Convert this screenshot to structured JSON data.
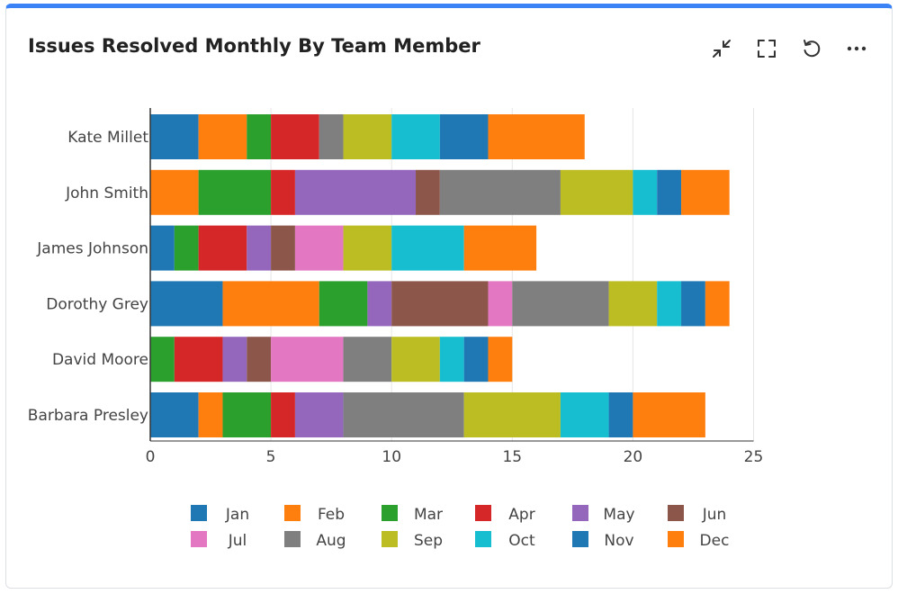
{
  "widget": {
    "title": "Issues Resolved Monthly By Team Member",
    "accent_color": "#3b82f6",
    "toolbar": [
      {
        "icon": "collapse-icon"
      },
      {
        "icon": "fullscreen-icon"
      },
      {
        "icon": "refresh-icon"
      },
      {
        "icon": "more-icon"
      }
    ]
  },
  "chart_data": {
    "type": "bar",
    "orientation": "horizontal",
    "stacked": true,
    "categories": [
      "Kate Millet",
      "John Smith",
      "James Johnson",
      "Dorothy Grey",
      "David Moore",
      "Barbara Presley"
    ],
    "series": [
      {
        "name": "Jan",
        "color": "#1f77b4",
        "values": [
          2,
          0,
          1,
          3,
          0,
          2
        ]
      },
      {
        "name": "Feb",
        "color": "#ff7f0e",
        "values": [
          2,
          2,
          0,
          4,
          0,
          1
        ]
      },
      {
        "name": "Mar",
        "color": "#2ca02c",
        "values": [
          1,
          3,
          1,
          2,
          1,
          2
        ]
      },
      {
        "name": "Apr",
        "color": "#d62728",
        "values": [
          2,
          1,
          2,
          0,
          2,
          1
        ]
      },
      {
        "name": "May",
        "color": "#9467bd",
        "values": [
          0,
          5,
          1,
          1,
          1,
          2
        ]
      },
      {
        "name": "Jun",
        "color": "#8c564b",
        "values": [
          0,
          1,
          1,
          4,
          1,
          0
        ]
      },
      {
        "name": "Jul",
        "color": "#e377c2",
        "values": [
          0,
          0,
          2,
          1,
          3,
          0
        ]
      },
      {
        "name": "Aug",
        "color": "#7f7f7f",
        "values": [
          1,
          5,
          0,
          4,
          2,
          5
        ]
      },
      {
        "name": "Sep",
        "color": "#bcbd22",
        "values": [
          2,
          3,
          2,
          2,
          2,
          4
        ]
      },
      {
        "name": "Oct",
        "color": "#17becf",
        "values": [
          2,
          1,
          3,
          1,
          1,
          2
        ]
      },
      {
        "name": "Nov",
        "color": "#1f77b4",
        "values": [
          2,
          1,
          0,
          1,
          1,
          1
        ]
      },
      {
        "name": "Dec",
        "color": "#ff7f0e",
        "values": [
          4,
          2,
          3,
          1,
          1,
          3
        ]
      }
    ],
    "xticks": [
      "0",
      "5",
      "10",
      "15",
      "20",
      "25"
    ],
    "xlim": [
      0,
      25.5
    ],
    "grid": true,
    "legend": "bottom"
  }
}
